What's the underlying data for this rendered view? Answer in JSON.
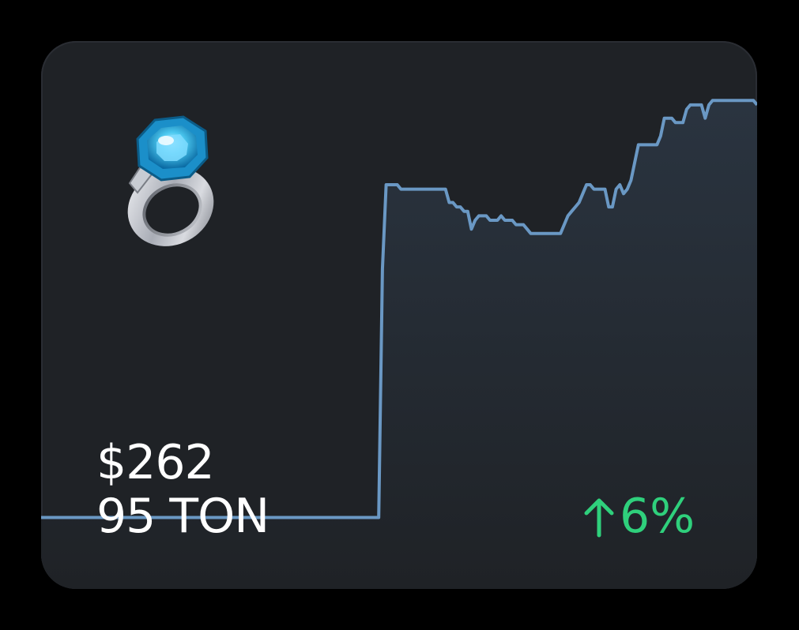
{
  "card": {
    "price_usd": "$262",
    "price_ton": "95 TON",
    "change_percent": "6%",
    "change_direction": "up",
    "icon": "gem-ring-icon"
  },
  "colors": {
    "card_bg": "#1f2226",
    "line": "#6a98c4",
    "fill_top": "#2a3440",
    "positive": "#2fd07c",
    "text": "#ffffff"
  },
  "chart_data": {
    "type": "area",
    "y_range": [
      0,
      100
    ],
    "values": [
      4,
      4,
      4,
      4,
      4,
      4,
      4,
      4,
      4,
      4,
      4,
      4,
      4,
      4,
      4,
      4,
      4,
      4,
      4,
      4,
      4,
      4,
      4,
      4,
      4,
      4,
      4,
      4,
      4,
      4,
      4,
      4,
      4,
      4,
      4,
      4,
      4,
      4,
      4,
      4,
      4,
      4,
      4,
      4,
      4,
      4,
      4,
      4,
      4,
      4,
      4,
      4,
      4,
      4,
      4,
      4,
      4,
      4,
      4,
      4,
      4,
      4,
      4,
      4,
      4,
      4,
      4,
      4,
      4,
      4,
      4,
      4,
      4,
      4,
      4,
      4,
      4,
      4,
      4,
      4,
      4,
      4,
      4,
      4,
      4,
      4,
      4,
      4,
      4,
      4,
      4,
      4,
      60,
      79,
      79,
      79,
      79,
      78,
      78,
      78,
      78,
      78,
      78,
      78,
      78,
      78,
      78,
      78,
      78,
      78,
      75,
      75,
      74,
      74,
      73,
      73,
      69,
      71,
      72,
      72,
      72,
      71,
      71,
      71,
      72,
      71,
      71,
      71,
      70,
      70,
      70,
      69,
      68,
      68,
      68,
      68,
      68,
      68,
      68,
      68,
      68,
      70,
      72,
      73,
      74,
      75,
      77,
      79,
      79,
      78,
      78,
      78,
      78,
      74,
      74,
      78,
      79,
      77,
      78,
      80,
      84,
      88,
      88,
      88,
      88,
      88,
      88,
      90,
      94,
      94,
      94,
      93,
      93,
      93,
      96,
      97,
      97,
      97,
      97,
      94,
      97,
      98,
      98,
      98,
      98,
      98,
      98,
      98,
      98,
      98,
      98,
      98,
      98,
      97
    ]
  }
}
